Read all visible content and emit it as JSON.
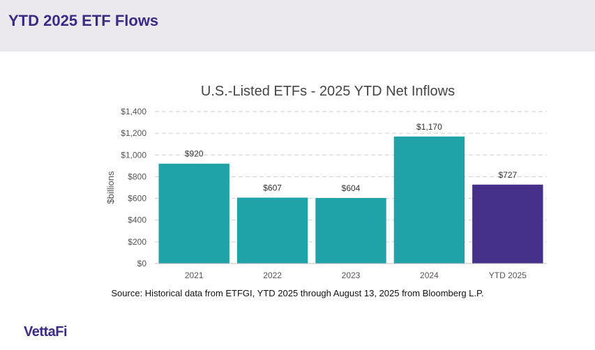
{
  "header": {
    "title": "YTD 2025 ETF Flows"
  },
  "chart_data": {
    "type": "bar",
    "title": "U.S.-Listed ETFs - 2025 YTD Net Inflows",
    "xlabel": "",
    "ylabel": "$billions",
    "categories": [
      "2021",
      "2022",
      "2023",
      "2024",
      "YTD 2025"
    ],
    "values": [
      920,
      607,
      604,
      1170,
      727
    ],
    "data_labels": [
      "$920",
      "$607",
      "$604",
      "$1,170",
      "$727"
    ],
    "ylim": [
      0,
      1400
    ],
    "yticks": [
      0,
      200,
      400,
      600,
      800,
      1000,
      1200,
      1400
    ],
    "ytick_labels": [
      "$0",
      "$200",
      "$400",
      "$600",
      "$800",
      "$1,000",
      "$1,200",
      "$1,400"
    ],
    "grid": true,
    "colors": [
      "#1fa3a8",
      "#1fa3a8",
      "#1fa3a8",
      "#1fa3a8",
      "#45318a"
    ]
  },
  "footer": {
    "source": "Source: Historical data from ETFGI, YTD 2025 through August 13, 2025 from Bloomberg L.P.",
    "logo_text": "VettaFi"
  }
}
